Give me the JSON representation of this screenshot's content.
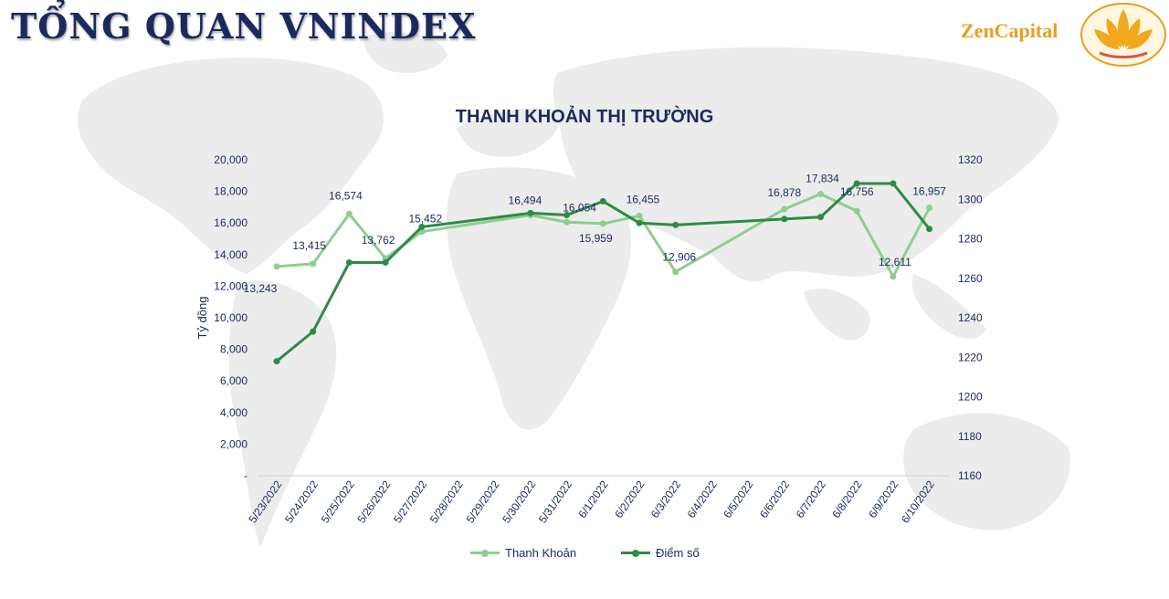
{
  "page": {
    "title": "TỔNG QUAN VNINDEX",
    "brand": "ZenCapital"
  },
  "colors": {
    "title": "#1b2a5e",
    "brand": "#e6a01f",
    "liquidity": "#8fce8f",
    "index": "#2e8b47",
    "label": "#1b2a5e",
    "map": "#ececec"
  },
  "icons": {
    "logo": "lotus-logo-icon",
    "background": "world-map-icon"
  },
  "chart_data": {
    "type": "line",
    "title": "THANH KHOẢN THỊ TRƯỜNG",
    "ylabel": "Tỷ đồng",
    "y2label": "",
    "categories": [
      "5/23/2022",
      "5/24/2022",
      "5/25/2022",
      "5/26/2022",
      "5/27/2022",
      "5/28/2022",
      "5/29/2022",
      "5/30/2022",
      "5/31/2022",
      "6/1/2022",
      "6/2/2022",
      "6/3/2022",
      "6/4/2022",
      "6/5/2022",
      "6/6/2022",
      "6/7/2022",
      "6/8/2022",
      "6/9/2022",
      "6/10/2022"
    ],
    "ylim": [
      0,
      20000
    ],
    "y_ticks": [
      "-",
      "2,000",
      "4,000",
      "6,000",
      "8,000",
      "10,000",
      "12,000",
      "14,000",
      "16,000",
      "18,000",
      "20,000"
    ],
    "y2lim": [
      1160,
      1320
    ],
    "y2_ticks": [
      "1160",
      "1180",
      "1200",
      "1220",
      "1240",
      "1260",
      "1280",
      "1300",
      "1320"
    ],
    "legend_position": "bottom",
    "grid": false,
    "series": [
      {
        "name": "Thanh Khoản",
        "axis": "left",
        "points": [
          {
            "x": "5/23/2022",
            "y": 13243,
            "label": "13,243"
          },
          {
            "x": "5/24/2022",
            "y": 13415,
            "label": "13,415"
          },
          {
            "x": "5/25/2022",
            "y": 16574,
            "label": "16,574"
          },
          {
            "x": "5/26/2022",
            "y": 13762,
            "label": "13,762"
          },
          {
            "x": "5/27/2022",
            "y": 15452,
            "label": "15,452"
          },
          {
            "x": "5/30/2022",
            "y": 16494,
            "label": "16,494"
          },
          {
            "x": "5/31/2022",
            "y": 16054,
            "label": "16,054"
          },
          {
            "x": "6/1/2022",
            "y": 15959,
            "label": "15,959"
          },
          {
            "x": "6/2/2022",
            "y": 16455,
            "label": "16,455"
          },
          {
            "x": "6/3/2022",
            "y": 12906,
            "label": "12,906"
          },
          {
            "x": "6/6/2022",
            "y": 16878,
            "label": "16,878"
          },
          {
            "x": "6/7/2022",
            "y": 17834,
            "label": "17,834"
          },
          {
            "x": "6/8/2022",
            "y": 16756,
            "label": "16,756"
          },
          {
            "x": "6/9/2022",
            "y": 12611,
            "label": "12,611"
          },
          {
            "x": "6/10/2022",
            "y": 16957,
            "label": "16,957"
          }
        ]
      },
      {
        "name": "Điểm số",
        "axis": "right",
        "points": [
          {
            "x": "5/23/2022",
            "y": 1218
          },
          {
            "x": "5/24/2022",
            "y": 1233
          },
          {
            "x": "5/25/2022",
            "y": 1268
          },
          {
            "x": "5/26/2022",
            "y": 1268
          },
          {
            "x": "5/27/2022",
            "y": 1286
          },
          {
            "x": "5/30/2022",
            "y": 1293
          },
          {
            "x": "5/31/2022",
            "y": 1292
          },
          {
            "x": "6/1/2022",
            "y": 1299
          },
          {
            "x": "6/2/2022",
            "y": 1288
          },
          {
            "x": "6/3/2022",
            "y": 1287
          },
          {
            "x": "6/6/2022",
            "y": 1290
          },
          {
            "x": "6/7/2022",
            "y": 1291
          },
          {
            "x": "6/8/2022",
            "y": 1308
          },
          {
            "x": "6/9/2022",
            "y": 1308
          },
          {
            "x": "6/10/2022",
            "y": 1285
          }
        ]
      }
    ]
  }
}
